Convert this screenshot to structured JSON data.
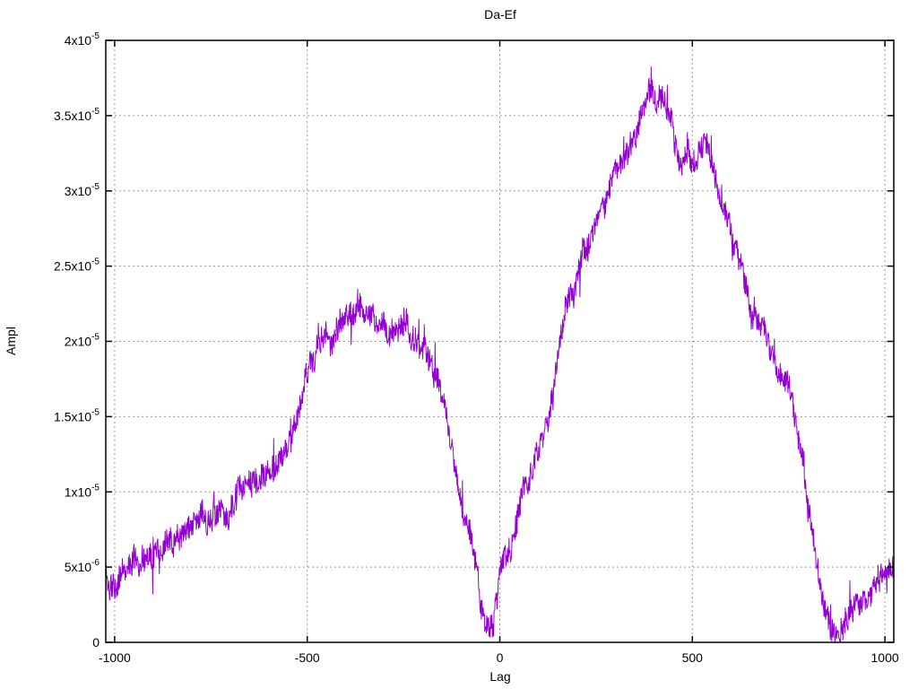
{
  "window": {
    "background": "#ffffff"
  },
  "chart_data": {
    "type": "line",
    "title": "Da-Ef",
    "xlabel": "Lag",
    "ylabel": "Ampl",
    "xlim": [
      -1023,
      1023
    ],
    "ylim": [
      0,
      4e-05
    ],
    "grid": true,
    "grid_style": "dotted",
    "legend": "none",
    "x_ticks": [
      {
        "v": -1000,
        "label": "-1000"
      },
      {
        "v": -500,
        "label": "-500"
      },
      {
        "v": 0,
        "label": "0"
      },
      {
        "v": 500,
        "label": "500"
      },
      {
        "v": 1000,
        "label": "1000"
      }
    ],
    "y_ticks": [
      {
        "v": 0,
        "mantissa": "0",
        "exponent": ""
      },
      {
        "v": 5e-06,
        "mantissa": "5x10",
        "exponent": "-6"
      },
      {
        "v": 1e-05,
        "mantissa": "1x10",
        "exponent": "-5"
      },
      {
        "v": 1.5e-05,
        "mantissa": "1.5x10",
        "exponent": "-5"
      },
      {
        "v": 2e-05,
        "mantissa": "2x10",
        "exponent": "-5"
      },
      {
        "v": 2.5e-05,
        "mantissa": "2.5x10",
        "exponent": "-5"
      },
      {
        "v": 3e-05,
        "mantissa": "3x10",
        "exponent": "-5"
      },
      {
        "v": 3.5e-05,
        "mantissa": "3.5x10",
        "exponent": "-5"
      },
      {
        "v": 4e-05,
        "mantissa": "4x10",
        "exponent": "-5"
      }
    ],
    "colors": {
      "line": "#9400D3",
      "grid": "#9a9a9a",
      "border": "#000000",
      "text": "#000000"
    },
    "series": [
      {
        "color": "#9400D3",
        "style": "noisy-line",
        "x_step": 1,
        "clamp": [
          0,
          4e-05
        ],
        "noise": {
          "seed": 11,
          "white": 8e-07,
          "wander_gain": 5e-07,
          "wander_decay": 0.93,
          "spike_prob": 0.05,
          "spike_amp": 1.8e-06
        },
        "envelope": [
          [
            -1023,
            4.6e-06
          ],
          [
            -1012,
            3.9e-06
          ],
          [
            -997,
            3.6e-06
          ],
          [
            -985,
            4.6e-06
          ],
          [
            -970,
            5.2e-06
          ],
          [
            -945,
            5.4e-06
          ],
          [
            -920,
            5.7e-06
          ],
          [
            -900,
            6.4e-06
          ],
          [
            -875,
            6.6e-06
          ],
          [
            -850,
            7.1e-06
          ],
          [
            -820,
            7.6e-06
          ],
          [
            -795,
            7.9e-06
          ],
          [
            -770,
            8.4e-06
          ],
          [
            -745,
            8.7e-06
          ],
          [
            -728,
            8.6e-06
          ],
          [
            -713,
            7.9e-06
          ],
          [
            -698,
            8.7e-06
          ],
          [
            -678,
            9.7e-06
          ],
          [
            -658,
            1.03e-05
          ],
          [
            -635,
            1.05e-05
          ],
          [
            -612,
            1.07e-05
          ],
          [
            -598,
            1.11e-05
          ],
          [
            -578,
            1.2e-05
          ],
          [
            -558,
            1.25e-05
          ],
          [
            -545,
            1.32e-05
          ],
          [
            -530,
            1.45e-05
          ],
          [
            -515,
            1.62e-05
          ],
          [
            -500,
            1.82e-05
          ],
          [
            -485,
            1.9e-05
          ],
          [
            -470,
            1.96e-05
          ],
          [
            -455,
            2.01e-05
          ],
          [
            -440,
            2.04e-05
          ],
          [
            -425,
            2.08e-05
          ],
          [
            -410,
            2.11e-05
          ],
          [
            -395,
            2.14e-05
          ],
          [
            -380,
            2.2e-05
          ],
          [
            -370,
            2.23e-05
          ],
          [
            -358,
            2.19e-05
          ],
          [
            -345,
            2.15e-05
          ],
          [
            -330,
            2.13e-05
          ],
          [
            -310,
            2.11e-05
          ],
          [
            -290,
            2.09e-05
          ],
          [
            -270,
            2.07e-05
          ],
          [
            -250,
            2.05e-05
          ],
          [
            -230,
            2.01e-05
          ],
          [
            -210,
            1.97e-05
          ],
          [
            -195,
            1.92e-05
          ],
          [
            -180,
            1.84e-05
          ],
          [
            -168,
            1.76e-05
          ],
          [
            -156,
            1.66e-05
          ],
          [
            -144,
            1.54e-05
          ],
          [
            -132,
            1.38e-05
          ],
          [
            -120,
            1.24e-05
          ],
          [
            -108,
            1.1e-05
          ],
          [
            -96,
            9.4e-06
          ],
          [
            -84,
            8.2e-06
          ],
          [
            -72,
            6.8e-06
          ],
          [
            -60,
            5.2e-06
          ],
          [
            -50,
            3.6e-06
          ],
          [
            -40,
            2e-06
          ],
          [
            -32,
            1e-06
          ],
          [
            -24,
            9e-07
          ],
          [
            -16,
            1.3e-06
          ],
          [
            -8,
            2.6e-06
          ],
          [
            0,
            5e-06
          ],
          [
            8,
            5.8e-06
          ],
          [
            16,
            6e-06
          ],
          [
            24,
            6.3e-06
          ],
          [
            32,
            6.7e-06
          ],
          [
            40,
            7.3e-06
          ],
          [
            50,
            8.4e-06
          ],
          [
            60,
            9.7e-06
          ],
          [
            70,
            1.07e-05
          ],
          [
            80,
            1.15e-05
          ],
          [
            90,
            1.21e-05
          ],
          [
            100,
            1.27e-05
          ],
          [
            110,
            1.34e-05
          ],
          [
            120,
            1.43e-05
          ],
          [
            130,
            1.53e-05
          ],
          [
            140,
            1.69e-05
          ],
          [
            150,
            1.92e-05
          ],
          [
            160,
            2.16e-05
          ],
          [
            170,
            2.26e-05
          ],
          [
            180,
            2.31e-05
          ],
          [
            192,
            2.36e-05
          ],
          [
            204,
            2.43e-05
          ],
          [
            216,
            2.51e-05
          ],
          [
            228,
            2.56e-05
          ],
          [
            240,
            2.66e-05
          ],
          [
            252,
            2.77e-05
          ],
          [
            264,
            2.86e-05
          ],
          [
            276,
            2.93e-05
          ],
          [
            288,
            3.02e-05
          ],
          [
            300,
            3.11e-05
          ],
          [
            312,
            3.2e-05
          ],
          [
            324,
            3.25e-05
          ],
          [
            336,
            3.31e-05
          ],
          [
            348,
            3.39e-05
          ],
          [
            360,
            3.46e-05
          ],
          [
            372,
            3.53e-05
          ],
          [
            384,
            3.6e-05
          ],
          [
            396,
            3.66e-05
          ],
          [
            408,
            3.62e-05
          ],
          [
            420,
            3.59e-05
          ],
          [
            432,
            3.56e-05
          ],
          [
            444,
            3.49e-05
          ],
          [
            456,
            3.33e-05
          ],
          [
            466,
            3.18e-05
          ],
          [
            476,
            3.19e-05
          ],
          [
            486,
            3.24e-05
          ],
          [
            496,
            3.21e-05
          ],
          [
            508,
            3.23e-05
          ],
          [
            520,
            3.29e-05
          ],
          [
            532,
            3.32e-05
          ],
          [
            544,
            3.19e-05
          ],
          [
            556,
            3.07e-05
          ],
          [
            568,
            2.98e-05
          ],
          [
            580,
            2.84e-05
          ],
          [
            592,
            2.7e-05
          ],
          [
            604,
            2.62e-05
          ],
          [
            616,
            2.56e-05
          ],
          [
            628,
            2.48e-05
          ],
          [
            640,
            2.34e-05
          ],
          [
            652,
            2.24e-05
          ],
          [
            664,
            2.16e-05
          ],
          [
            676,
            2.08e-05
          ],
          [
            688,
            2.02e-05
          ],
          [
            700,
            1.98e-05
          ],
          [
            712,
            1.94e-05
          ],
          [
            724,
            1.86e-05
          ],
          [
            736,
            1.78e-05
          ],
          [
            748,
            1.7e-05
          ],
          [
            760,
            1.56e-05
          ],
          [
            772,
            1.38e-05
          ],
          [
            784,
            1.2e-05
          ],
          [
            796,
            9.8e-06
          ],
          [
            808,
            7.6e-06
          ],
          [
            820,
            5.6e-06
          ],
          [
            832,
            3.8e-06
          ],
          [
            844,
            2.4e-06
          ],
          [
            856,
            1.3e-06
          ],
          [
            868,
            9e-07
          ],
          [
            880,
            1e-06
          ],
          [
            892,
            1.4e-06
          ],
          [
            904,
            2e-06
          ],
          [
            916,
            2.2e-06
          ],
          [
            930,
            2.6e-06
          ],
          [
            945,
            3e-06
          ],
          [
            960,
            3.4e-06
          ],
          [
            975,
            3.8e-06
          ],
          [
            990,
            4.1e-06
          ],
          [
            1005,
            4.4e-06
          ],
          [
            1023,
            4.8e-06
          ]
        ]
      }
    ]
  }
}
